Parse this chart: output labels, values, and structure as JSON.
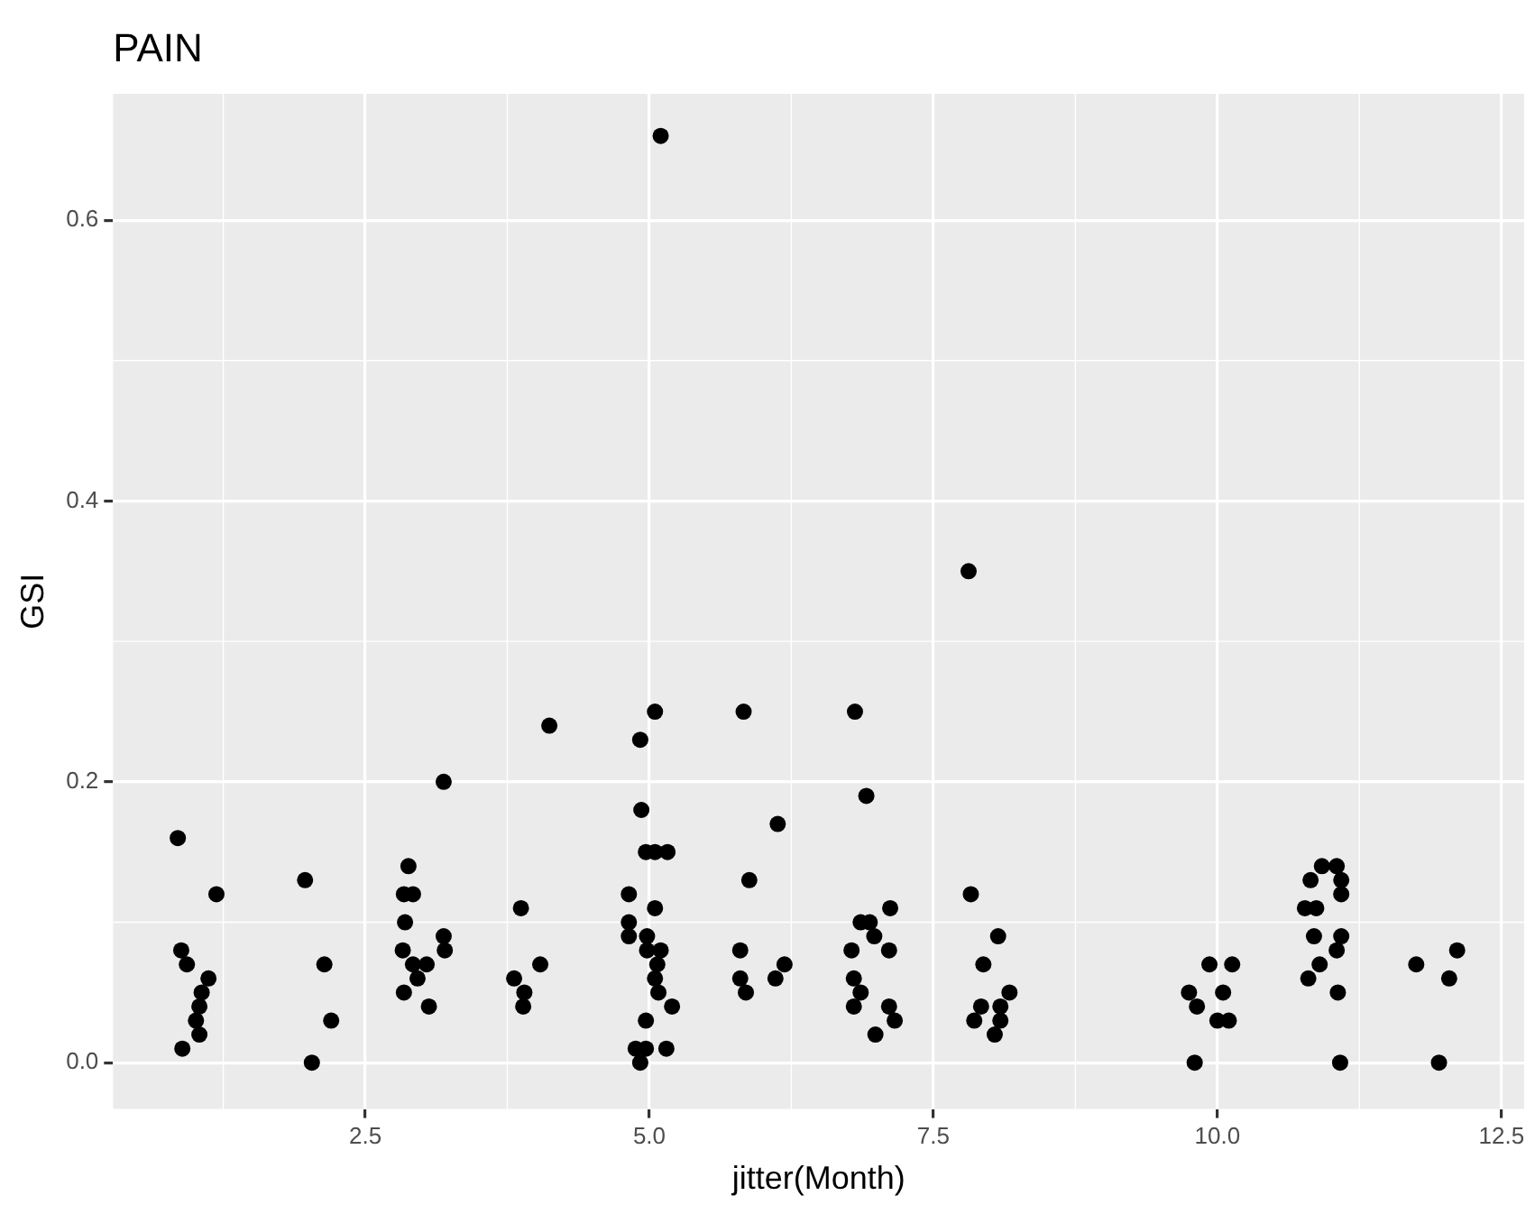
{
  "chart_data": {
    "type": "scatter",
    "title": "PAIN",
    "xlabel": "jitter(Month)",
    "ylabel": "GSI",
    "xlim": [
      0.28,
      12.7
    ],
    "ylim": [
      -0.033,
      0.69
    ],
    "xticks": [
      {
        "value": 2.5,
        "label": "2.5"
      },
      {
        "value": 5,
        "label": "5.0"
      },
      {
        "value": 7.5,
        "label": "7.5"
      },
      {
        "value": 10,
        "label": "10.0"
      },
      {
        "value": 12.5,
        "label": "12.5"
      }
    ],
    "yticks": [
      {
        "value": 0,
        "label": "0.0"
      },
      {
        "value": 0.2,
        "label": "0.2"
      },
      {
        "value": 0.4,
        "label": "0.4"
      },
      {
        "value": 0.6,
        "label": "0.6"
      }
    ],
    "grid": true,
    "marker": "circle",
    "legend": false,
    "series": [
      {
        "color": "#000000",
        "x": [
          0.85,
          1.19,
          0.88,
          0.93,
          1.12,
          1.06,
          1.04,
          1.01,
          1.04,
          0.89,
          1.97,
          2.14,
          2.2,
          2.03,
          2.88,
          2.84,
          2.92,
          2.85,
          3.19,
          3.2,
          2.83,
          2.92,
          3.04,
          2.96,
          2.84,
          3.06,
          3.19,
          3.87,
          4.04,
          3.81,
          3.9,
          3.89,
          4.12,
          5.05,
          4.92,
          4.93,
          4.97,
          5.05,
          5.16,
          4.82,
          5.05,
          4.82,
          4.82,
          4.98,
          4.98,
          5.1,
          5.07,
          5.05,
          5.08,
          5.2,
          4.97,
          4.88,
          4.97,
          5.15,
          4.92,
          5.1,
          5.83,
          5.88,
          5.8,
          5.8,
          5.85,
          6.19,
          6.11,
          6.13,
          6.81,
          6.91,
          6.86,
          6.94,
          6.98,
          6.78,
          7.11,
          6.8,
          6.86,
          6.8,
          7.11,
          7.16,
          6.99,
          7.12,
          7.83,
          7.81,
          8.07,
          7.94,
          8.17,
          7.92,
          8.09,
          7.86,
          8.09,
          8.04,
          9.93,
          10.13,
          9.75,
          9.82,
          10.05,
          10.0,
          10.1,
          9.8,
          10.92,
          11.05,
          10.82,
          11.09,
          11.09,
          10.77,
          10.87,
          10.85,
          11.09,
          11.05,
          10.9,
          10.8,
          11.06,
          11.08,
          12.11,
          11.75,
          12.04,
          11.95
        ],
        "values": [
          0.16,
          0.12,
          0.08,
          0.07,
          0.06,
          0.05,
          0.04,
          0.03,
          0.02,
          0.01,
          0.13,
          0.07,
          0.03,
          0.0,
          0.14,
          0.12,
          0.12,
          0.1,
          0.09,
          0.08,
          0.08,
          0.07,
          0.07,
          0.06,
          0.05,
          0.04,
          0.2,
          0.11,
          0.07,
          0.06,
          0.05,
          0.04,
          0.24,
          0.25,
          0.23,
          0.18,
          0.15,
          0.15,
          0.15,
          0.12,
          0.11,
          0.1,
          0.09,
          0.09,
          0.08,
          0.08,
          0.07,
          0.06,
          0.05,
          0.04,
          0.03,
          0.01,
          0.01,
          0.01,
          0.0,
          0.66,
          0.25,
          0.13,
          0.08,
          0.06,
          0.05,
          0.07,
          0.06,
          0.17,
          0.25,
          0.19,
          0.1,
          0.1,
          0.09,
          0.08,
          0.08,
          0.06,
          0.05,
          0.04,
          0.04,
          0.03,
          0.02,
          0.11,
          0.12,
          0.35,
          0.09,
          0.07,
          0.05,
          0.04,
          0.04,
          0.03,
          0.03,
          0.02,
          0.07,
          0.07,
          0.05,
          0.04,
          0.05,
          0.03,
          0.03,
          0.0,
          0.14,
          0.14,
          0.13,
          0.13,
          0.12,
          0.11,
          0.11,
          0.09,
          0.09,
          0.08,
          0.07,
          0.06,
          0.05,
          0.0,
          0.08,
          0.07,
          0.06,
          0.0
        ]
      }
    ]
  }
}
